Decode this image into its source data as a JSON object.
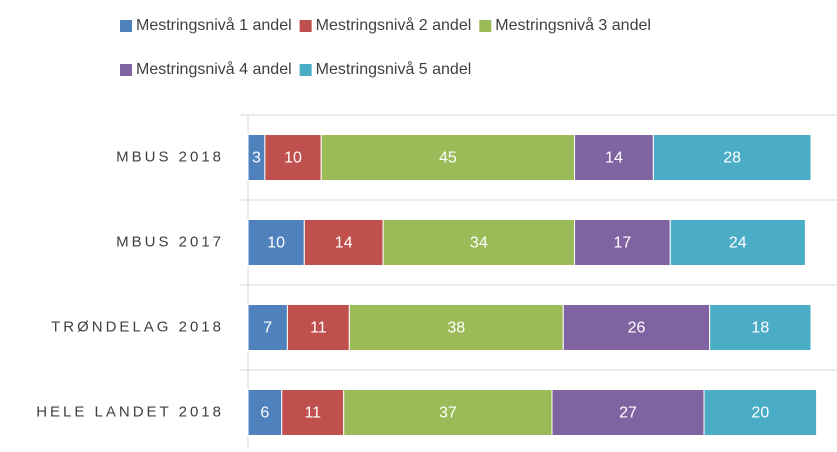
{
  "chart_data": {
    "type": "stacked-bar-horizontal",
    "categories": [
      "MBUS 2018",
      "MBUS 2017",
      "TRØNDELAG 2018",
      "HELE LANDET 2018"
    ],
    "series": [
      {
        "name": "Mestringsnivå 1 andel",
        "color": "#4f81bd",
        "values": [
          3,
          10,
          7,
          6
        ]
      },
      {
        "name": "Mestringsnivå 2 andel",
        "color": "#c0504d",
        "values": [
          10,
          14,
          11,
          11
        ]
      },
      {
        "name": "Mestringsnivå 3 andel",
        "color": "#9bbb59",
        "values": [
          45,
          34,
          38,
          37
        ]
      },
      {
        "name": "Mestringsnivå 4 andel",
        "color": "#8064a2",
        "values": [
          14,
          17,
          26,
          27
        ]
      },
      {
        "name": "Mestringsnivå 5 andel",
        "color": "#4bacc6",
        "values": [
          28,
          24,
          18,
          20
        ]
      }
    ],
    "xlim": [
      0,
      100
    ],
    "legend": "top"
  }
}
